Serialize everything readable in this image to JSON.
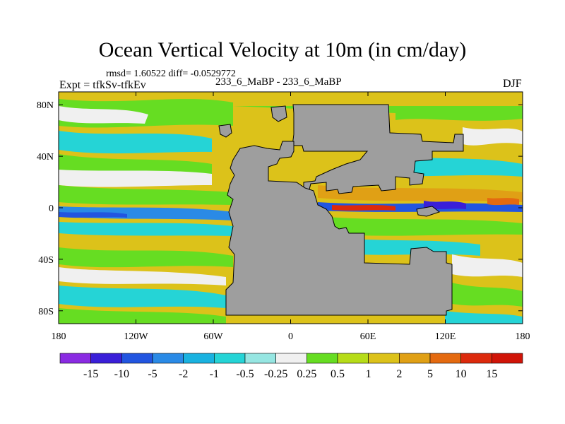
{
  "chart_data": {
    "type": "heatmap",
    "title": "Ocean Vertical Velocity at 10m (in cm/day)",
    "stats_text": "rmsd= 1.60522 diff= -0.0529772",
    "expt_text": "Expt = tfkSv-tfkEv",
    "experiment_pair": "233_6_MaBP - 233_6_MaBP",
    "season": "DJF",
    "x_ticks": [
      {
        "value": -180,
        "label": "180"
      },
      {
        "value": -120,
        "label": "120W"
      },
      {
        "value": -60,
        "label": "60W"
      },
      {
        "value": 0,
        "label": "0"
      },
      {
        "value": 60,
        "label": "60E"
      },
      {
        "value": 120,
        "label": "120E"
      },
      {
        "value": 180,
        "label": "180"
      }
    ],
    "y_ticks": [
      {
        "value": 80,
        "label": "80N"
      },
      {
        "value": 40,
        "label": "40N"
      },
      {
        "value": 0,
        "label": "0"
      },
      {
        "value": -40,
        "label": "40S"
      },
      {
        "value": -80,
        "label": "80S"
      }
    ],
    "xlim": [
      -180,
      180
    ],
    "ylim": [
      -90,
      90
    ],
    "colorbar": {
      "levels": [
        "-15",
        "-10",
        "-5",
        "-2",
        "-1",
        "-0.5",
        "-0.25",
        "0.25",
        "0.5",
        "1",
        "2",
        "5",
        "10",
        "15"
      ],
      "colors": [
        "#8a2be2",
        "#3a1fd8",
        "#2255e0",
        "#2a8ae6",
        "#19b2e0",
        "#25d4d6",
        "#96e6e2",
        "#f0f0f0",
        "#66dd22",
        "#b6dc18",
        "#dcc21a",
        "#e0a015",
        "#e46a10",
        "#dc2a0c",
        "#d01408"
      ]
    },
    "land_color": "#9e9e9e"
  }
}
